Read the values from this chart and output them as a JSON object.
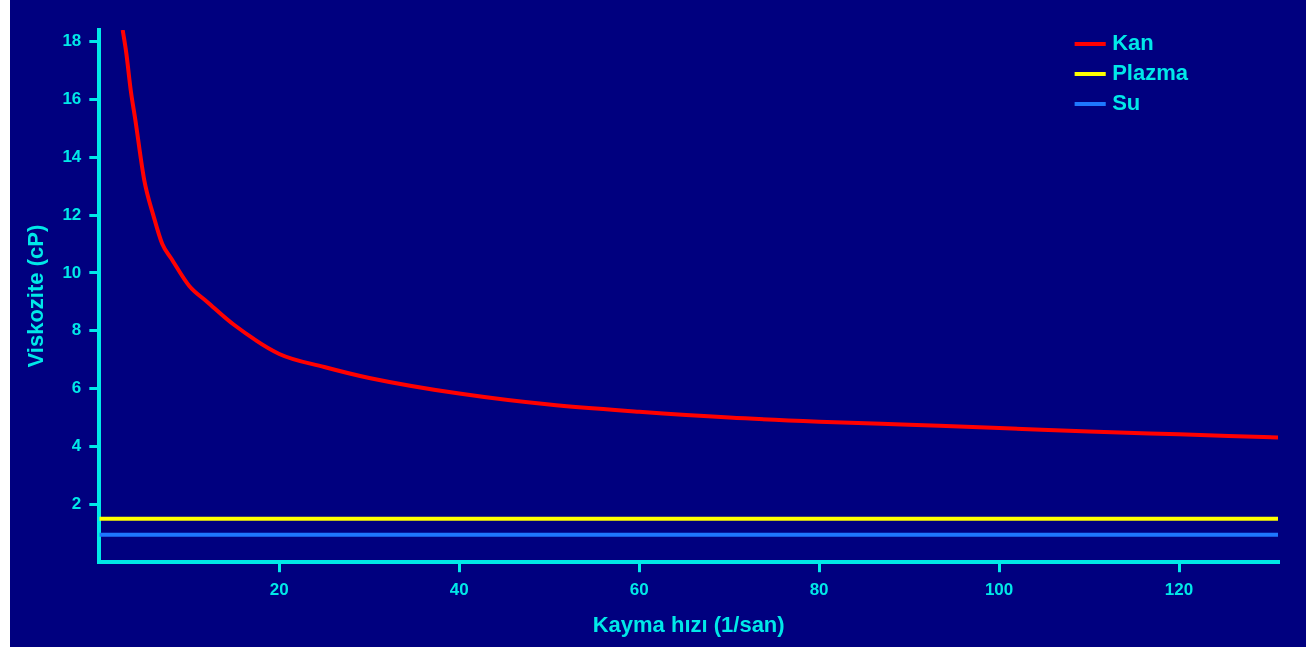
{
  "chart_data": {
    "type": "line",
    "xlabel": "Kayma hızı (1/san)",
    "ylabel": "Viskozite (cP)",
    "xlim": [
      0,
      131
    ],
    "ylim": [
      0,
      18.4
    ],
    "xticks": [
      20,
      40,
      60,
      80,
      100,
      120
    ],
    "yticks": [
      2,
      4,
      6,
      8,
      10,
      12,
      14,
      16,
      18
    ],
    "grid": false,
    "legend": "top right",
    "marker": "none",
    "line_style": "solid",
    "series": [
      {
        "name": "Kan",
        "color": "#ff0000",
        "x": [
          2.6,
          3,
          3.5,
          4,
          5,
          6,
          7,
          8,
          10,
          12,
          15,
          20,
          25,
          30,
          40,
          50,
          60,
          70,
          80,
          90,
          100,
          110,
          120,
          131
        ],
        "values": [
          18.4,
          17.6,
          16.3,
          15.3,
          13.2,
          12.0,
          11.0,
          10.5,
          9.55,
          9.0,
          8.2,
          7.2,
          6.75,
          6.37,
          5.83,
          5.45,
          5.2,
          5.0,
          4.86,
          4.75,
          4.64,
          4.52,
          4.42,
          4.31
        ]
      },
      {
        "name": "Plazma",
        "color": "#ffff00",
        "x": [
          0,
          131
        ],
        "values": [
          1.5,
          1.5
        ]
      },
      {
        "name": "Su",
        "color": "#1e78ff",
        "x": [
          0,
          131
        ],
        "values": [
          0.95,
          0.95
        ]
      }
    ]
  }
}
